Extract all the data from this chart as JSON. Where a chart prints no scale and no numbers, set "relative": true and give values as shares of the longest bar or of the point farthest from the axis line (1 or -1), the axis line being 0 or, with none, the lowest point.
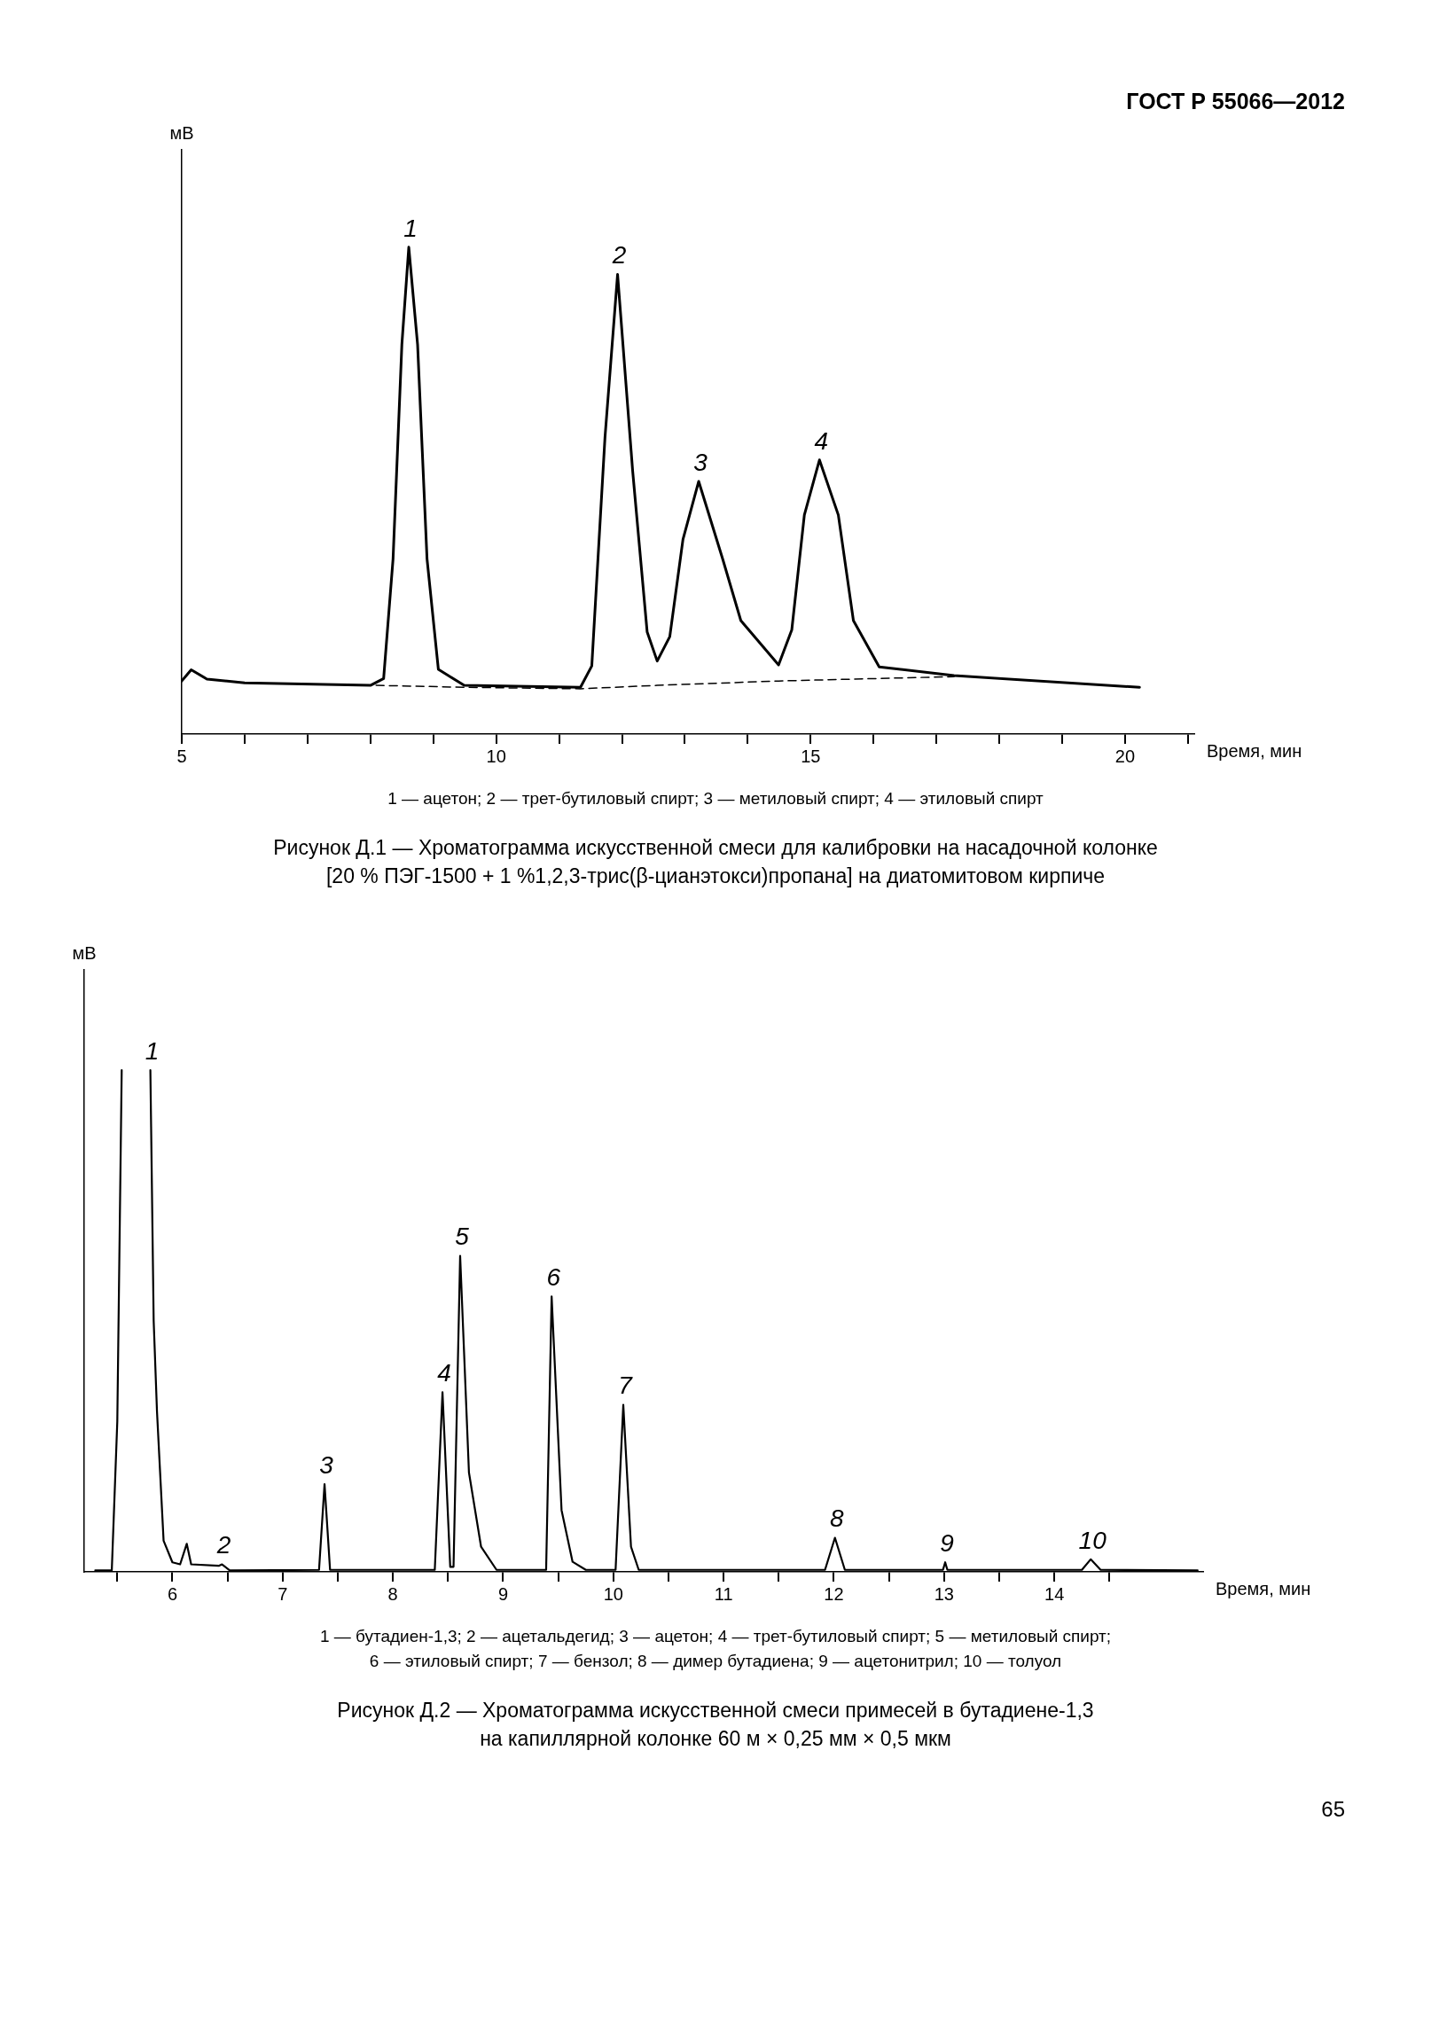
{
  "chart_data": [
    {
      "type": "line",
      "relative": true,
      "marker": "none",
      "title": "Рисунок Д.1 — Хроматограмма искусственной смеси для калибровки на насадочной колонке\n[20 % ПЭГ-1500 + 1 %1,2,3-трис(β-цианэтокси)пропана] на диатомитовом кирпиче",
      "xlabel": "Время, мин",
      "ylabel": "мВ",
      "xlim": [
        5,
        21.1
      ],
      "xticks": [
        5,
        {
          "value": 6,
          "label": null
        },
        {
          "value": 7,
          "label": null
        },
        {
          "value": 8,
          "label": null
        },
        {
          "value": 9,
          "label": null
        },
        10,
        {
          "value": 11,
          "label": null
        },
        {
          "value": 12,
          "label": null
        },
        {
          "value": 13,
          "label": null
        },
        {
          "value": 14,
          "label": null
        },
        15,
        {
          "value": 16,
          "label": null
        },
        {
          "value": 17,
          "label": null
        },
        {
          "value": 18,
          "label": null
        },
        {
          "value": 19,
          "label": null
        },
        20,
        {
          "value": 21,
          "label": null
        }
      ],
      "series": [
        {
          "color": "#000000",
          "line_style": "solid",
          "x": [
            5.0,
            5.15,
            5.4,
            6.0,
            8.0,
            8.21,
            8.36,
            8.5,
            8.61,
            8.75,
            8.9,
            9.08,
            9.49,
            11.34,
            11.52,
            11.73,
            11.93,
            12.17,
            12.4,
            12.56,
            12.76,
            12.97,
            13.22,
            13.6,
            13.89,
            14.49,
            14.7,
            14.9,
            15.14,
            15.44,
            15.68,
            16.09,
            17.28,
            20.23
          ],
          "values": [
            0.109,
            0.132,
            0.113,
            0.105,
            0.1,
            0.114,
            0.36,
            0.8,
            1.0,
            0.8,
            0.36,
            0.133,
            0.1,
            0.096,
            0.14,
            0.61,
            0.944,
            0.54,
            0.21,
            0.15,
            0.2,
            0.4,
            0.519,
            0.36,
            0.233,
            0.142,
            0.214,
            0.45,
            0.563,
            0.45,
            0.233,
            0.138,
            0.12,
            0.096
          ]
        },
        {
          "color": "#000000",
          "line_style": "dashed",
          "x": [
            8.09,
            9.53,
            11.34,
            12.56,
            14.49,
            17.28
          ],
          "values": [
            0.1,
            0.096,
            0.093,
            0.1,
            0.109,
            0.118
          ]
        }
      ],
      "annotations": [
        "ГОСТ Р 55066—2012",
        {
          "text": "1",
          "x": 8.61,
          "y": 1.0
        },
        {
          "text": "2",
          "x": 11.93,
          "y": 0.944
        },
        {
          "text": "3",
          "x": 13.22,
          "y": 0.519
        },
        {
          "text": "4",
          "x": 15.14,
          "y": 0.563
        },
        "1 — ацетон; 2 — трет-бутиловый спирт; 3 — метиловый спирт; 4 — этиловый спирт"
      ]
    },
    {
      "type": "line",
      "relative": true,
      "marker": "none",
      "title": "Рисунок Д.2 — Хроматограмма искусственной смеси примесей в бутадиене-1,3\nна капиллярной колонке 60 м × 0,25 мм × 0,5 мкм",
      "xlabel": "Время, мин",
      "ylabel": "мВ",
      "xlim": [
        5.2,
        15.35
      ],
      "xticks": [
        {
          "value": 5.5,
          "label": null
        },
        6,
        {
          "value": 6.5,
          "label": null
        },
        7,
        {
          "value": 7.5,
          "label": null
        },
        8,
        {
          "value": 8.5,
          "label": null
        },
        9,
        {
          "value": 9.5,
          "label": null
        },
        10,
        {
          "value": 10.5,
          "label": null
        },
        11,
        {
          "value": 11.5,
          "label": null
        },
        12,
        {
          "value": 12.5,
          "label": null
        },
        13,
        {
          "value": 13.5,
          "label": null
        },
        14,
        {
          "value": 14.5,
          "label": null
        }
      ],
      "series": [
        {
          "color": "#000000",
          "line_style": "solid",
          "x": [
            5.3,
            5.45,
            5.5,
            5.54,
            5.67,
            5.8,
            5.83,
            5.86,
            5.92,
            6.0,
            6.07,
            6.13,
            6.17,
            6.42,
            6.45,
            6.52,
            7.33,
            7.38,
            7.43,
            8.38,
            8.45,
            8.52,
            8.55,
            8.61,
            8.69,
            8.8,
            8.94,
            9.39,
            9.44,
            9.53,
            9.63,
            9.75,
            10.02,
            10.09,
            10.16,
            10.23,
            11.92,
            12.01,
            12.1,
            12.99,
            13.01,
            13.03,
            14.25,
            14.33,
            14.42,
            15.3
          ],
          "values": [
            0.003,
            0.003,
            0.3,
            1.0,
            null,
            1.0,
            0.5,
            0.32,
            0.062,
            0.019,
            0.015,
            0.056,
            0.015,
            0.012,
            0.015,
            0.003,
            0.004,
            0.175,
            0.004,
            0.004,
            0.358,
            0.01,
            0.01,
            0.63,
            0.198,
            0.05,
            0.004,
            0.004,
            0.549,
            0.123,
            0.02,
            0.004,
            0.004,
            0.333,
            0.05,
            0.004,
            0.004,
            0.068,
            0.004,
            0.004,
            0.019,
            0.004,
            0.004,
            0.025,
            0.004,
            0.003
          ]
        }
      ],
      "annotations": [
        {
          "text": "1",
          "x": 5.8,
          "y": 1.0
        },
        {
          "text": "2",
          "x": 6.45,
          "y": 0.015
        },
        {
          "text": "3",
          "x": 7.38,
          "y": 0.175
        },
        {
          "text": "4",
          "x": 8.45,
          "y": 0.358
        },
        {
          "text": "5",
          "x": 8.61,
          "y": 0.63
        },
        {
          "text": "6",
          "x": 9.44,
          "y": 0.549
        },
        {
          "text": "7",
          "x": 10.09,
          "y": 0.333
        },
        {
          "text": "8",
          "x": 12.01,
          "y": 0.068
        },
        {
          "text": "9",
          "x": 13.01,
          "y": 0.019
        },
        {
          "text": "10",
          "x": 14.33,
          "y": 0.025
        },
        "1 — бутадиен-1,3; 2 — ацетальдегид; 3 — ацетон; 4 — трет-бутиловый спирт; 5 — метиловый спирт;\n6 — этиловый спирт; 7 — бензол; 8 — димер бутадиена; 9 — ацетонитрил; 10 — толуол",
        "65"
      ]
    }
  ]
}
